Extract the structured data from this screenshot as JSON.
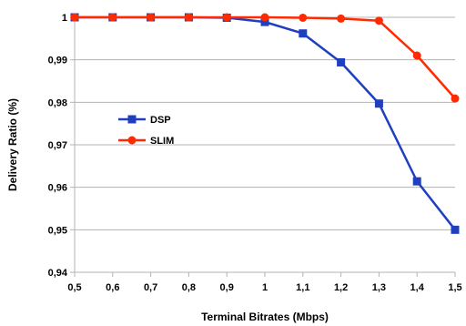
{
  "chart_data": {
    "type": "line",
    "title": "",
    "xlabel": "Terminal Bitrates (Mbps)",
    "ylabel": "Delivery Ratio (%)",
    "x": [
      0.5,
      0.6,
      0.7,
      0.8,
      0.9,
      1.0,
      1.1,
      1.2,
      1.3,
      1.4,
      1.5
    ],
    "x_tick_labels": [
      "0,5",
      "0,6",
      "0,7",
      "0,8",
      "0,9",
      "1",
      "1,1",
      "1,2",
      "1,3",
      "1,4",
      "1,5"
    ],
    "y_tick_values": [
      0.94,
      0.95,
      0.96,
      0.97,
      0.98,
      0.99,
      1.0
    ],
    "y_tick_labels": [
      "0,94",
      "0,95",
      "0,96",
      "0,97",
      "0,98",
      "0,99",
      "1"
    ],
    "xlim": [
      0.5,
      1.5
    ],
    "ylim": [
      0.94,
      1.0
    ],
    "grid": "horizontal",
    "legend_position": "center-left",
    "series": [
      {
        "name": "DSP",
        "color": "#1f3fbf",
        "marker": "square",
        "values": [
          1.0,
          1.0,
          1.0,
          1.0,
          0.9999,
          0.9989,
          0.9962,
          0.9894,
          0.9797,
          0.9614,
          0.95
        ]
      },
      {
        "name": "SLIM",
        "color": "#ff2a00",
        "marker": "circle",
        "values": [
          1.0,
          1.0,
          1.0,
          1.0,
          1.0,
          1.0,
          0.9999,
          0.9997,
          0.9992,
          0.991,
          0.9809
        ]
      }
    ]
  }
}
